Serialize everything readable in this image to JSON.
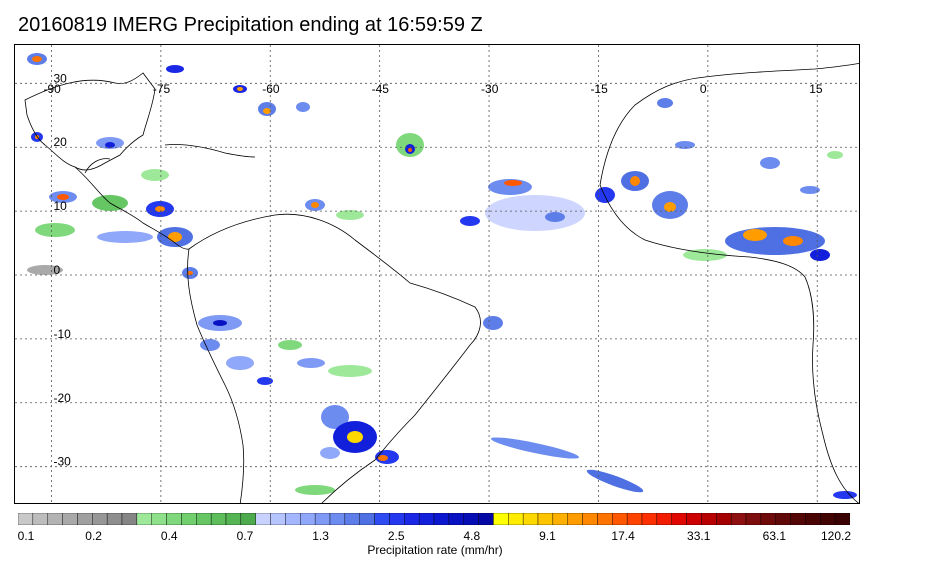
{
  "title": "20160819 IMERG Precipitation ending at 16:59:59 Z",
  "map": {
    "lon_labels": [
      "-90",
      "-75",
      "-60",
      "-45",
      "-30",
      "-15",
      "0",
      "15"
    ],
    "lon_values": [
      -90,
      -75,
      -60,
      -45,
      -30,
      -15,
      0,
      15
    ],
    "lat_labels": [
      "30",
      "20",
      "10",
      "0",
      "-10",
      "-20",
      "-30"
    ],
    "lat_values": [
      30,
      20,
      10,
      0,
      -10,
      -20,
      -30
    ],
    "lon_range": [
      -95,
      21
    ],
    "lat_range": [
      36,
      -36
    ],
    "gridlines": "dotted"
  },
  "colorbar": {
    "title": "Precipitation rate (mm/hr)",
    "tick_labels": [
      "0.1",
      "0.2",
      "0.4",
      "0.7",
      "1.3",
      "2.5",
      "4.8",
      "9.1",
      "17.4",
      "33.1",
      "63.1",
      "120.2"
    ],
    "colors": [
      "#c8c8c8",
      "#bdbdbd",
      "#b3b3b3",
      "#a9a9a9",
      "#a0a0a0",
      "#979797",
      "#8e8e8e",
      "#858585",
      "#9ee89a",
      "#8ee18a",
      "#7fd87b",
      "#71cf6d",
      "#66c663",
      "#5dbd5b",
      "#55b453",
      "#4dab4d",
      "#c9d2ff",
      "#b6c4ff",
      "#a3b6ff",
      "#90a8fa",
      "#7e9af5",
      "#6d8cf0",
      "#5d7ee9",
      "#4e70e2",
      "#2f4cf2",
      "#2338ef",
      "#1a28e6",
      "#1220db",
      "#0c18cf",
      "#0912c2",
      "#060db4",
      "#0409a6",
      "#ffff00",
      "#ffec00",
      "#ffd800",
      "#ffc400",
      "#ffb000",
      "#ff9c00",
      "#ff8800",
      "#ff7400",
      "#ff5800",
      "#ff4400",
      "#ff3000",
      "#f21c00",
      "#e00800",
      "#cc0000",
      "#b80000",
      "#a40000",
      "#8e1010",
      "#7e0d0d",
      "#6f0a0a",
      "#610808",
      "#540606",
      "#4a0404",
      "#420303",
      "#3a0202"
    ]
  }
}
